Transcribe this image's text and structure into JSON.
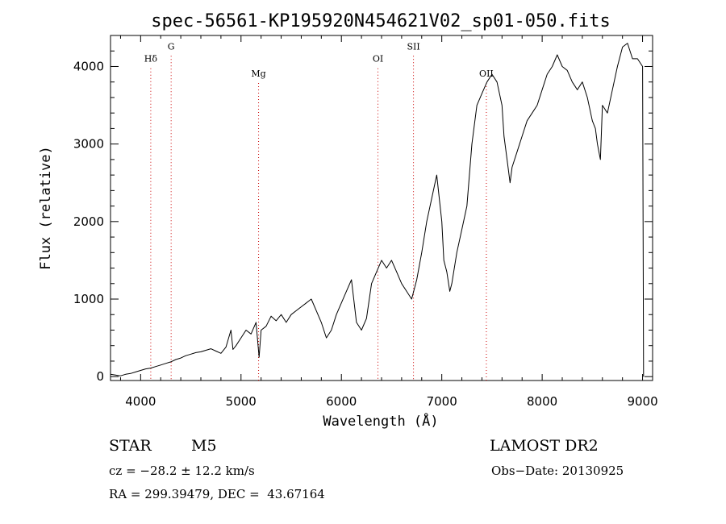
{
  "chart_data": {
    "type": "line",
    "title": "spec-56561-KP195920N454621V02_sp01-050.fits",
    "xlabel": "Wavelength (Å)",
    "ylabel": "Flux (relative)",
    "xlim": [
      3700,
      9100
    ],
    "ylim": [
      -50,
      4400
    ],
    "xticks": [
      4000,
      5000,
      6000,
      7000,
      8000,
      9000
    ],
    "yticks": [
      0,
      1000,
      2000,
      3000,
      4000
    ],
    "grid": false,
    "line_color": "#000000",
    "marker_color": "#cc0000",
    "lines": [
      {
        "label": "Hδ",
        "x": 4101,
        "label_y": 4060
      },
      {
        "label": "G",
        "x": 4304,
        "label_y": 4220
      },
      {
        "label": "Mg",
        "x": 5175,
        "label_y": 3870
      },
      {
        "label": "OI",
        "x": 6364,
        "label_y": 4060
      },
      {
        "label": "SII",
        "x": 6718,
        "label_y": 4220
      },
      {
        "label": "OII",
        "x": 7444,
        "label_y": 3870
      }
    ],
    "series": [
      {
        "x": [
          3700,
          3750,
          3800,
          3850,
          3900,
          3950,
          4000,
          4050,
          4100,
          4150,
          4200,
          4250,
          4300,
          4350,
          4400,
          4450,
          4500,
          4550,
          4600,
          4650,
          4700,
          4750,
          4800,
          4850,
          4900,
          4920,
          4950,
          5000,
          5050,
          5100,
          5150,
          5180,
          5200,
          5250,
          5300,
          5350,
          5400,
          5450,
          5500,
          5550,
          5600,
          5650,
          5700,
          5750,
          5800,
          5850,
          5900,
          5950,
          6000,
          6050,
          6100,
          6150,
          6200,
          6250,
          6300,
          6350,
          6400,
          6450,
          6500,
          6550,
          6600,
          6650,
          6700,
          6750,
          6800,
          6850,
          6900,
          6950,
          7000,
          7020,
          7050,
          7080,
          7100,
          7150,
          7200,
          7250,
          7300,
          7350,
          7400,
          7450,
          7500,
          7550,
          7600,
          7620,
          7650,
          7680,
          7700,
          7750,
          7800,
          7850,
          7900,
          7950,
          8000,
          8050,
          8100,
          8150,
          8200,
          8250,
          8300,
          8350,
          8400,
          8450,
          8500,
          8530,
          8550,
          8580,
          8600,
          8650,
          8700,
          8750,
          8800,
          8850,
          8900,
          8950,
          9000,
          9010
        ],
        "y": [
          30,
          20,
          10,
          30,
          40,
          60,
          80,
          100,
          110,
          130,
          150,
          170,
          190,
          220,
          240,
          270,
          290,
          310,
          320,
          340,
          360,
          330,
          300,
          380,
          600,
          350,
          400,
          500,
          600,
          550,
          700,
          250,
          600,
          650,
          780,
          720,
          800,
          700,
          800,
          850,
          900,
          950,
          1000,
          850,
          700,
          500,
          600,
          800,
          950,
          1100,
          1250,
          700,
          600,
          750,
          1200,
          1350,
          1500,
          1400,
          1500,
          1350,
          1200,
          1100,
          1000,
          1250,
          1600,
          2000,
          2300,
          2600,
          2000,
          1500,
          1350,
          1100,
          1200,
          1600,
          1900,
          2200,
          3000,
          3500,
          3650,
          3800,
          3900,
          3800,
          3500,
          3100,
          2800,
          2500,
          2700,
          2900,
          3100,
          3300,
          3400,
          3500,
          3700,
          3900,
          4000,
          4150,
          4000,
          3950,
          3800,
          3700,
          3800,
          3600,
          3300,
          3200,
          3000,
          2800,
          3500,
          3400,
          3700,
          4000,
          4250,
          4300,
          4100,
          4100,
          4000,
          0
        ]
      }
    ]
  },
  "footer": {
    "object_type": "STAR",
    "subclass": "M5",
    "survey": "LAMOST DR2",
    "cz": "cz = −28.2 ± 12.2 km/s",
    "obs_date": "Obs−Date: 20130925",
    "radec": "RA = 299.39479, DEC =  43.67164"
  }
}
